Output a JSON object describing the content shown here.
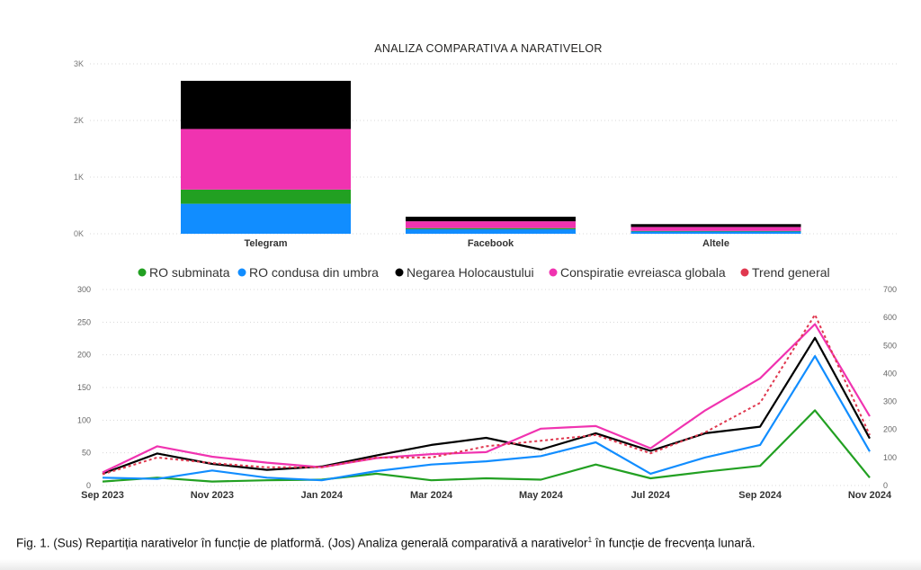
{
  "chart_data": [
    {
      "type": "bar",
      "stacked": true,
      "title": "ANALIZA COMPARATIVA A NARATIVELOR",
      "categories": [
        "Telegram",
        "Facebook",
        "Altele"
      ],
      "series": [
        {
          "name": "RO condusa din umbra",
          "color": "#118DFF",
          "values": [
            530,
            80,
            40
          ]
        },
        {
          "name": "RO subminata",
          "color": "#22A022",
          "values": [
            250,
            20,
            10
          ]
        },
        {
          "name": "Conspiratie evreiasca globala",
          "color": "#F033B0",
          "values": [
            1070,
            120,
            70
          ]
        },
        {
          "name": "Negarea Holocaustului",
          "color": "#000000",
          "values": [
            850,
            80,
            50
          ]
        }
      ],
      "ylim": [
        0,
        3000
      ],
      "yticks": [
        0,
        1000,
        2000,
        3000
      ],
      "ytick_labels": [
        "0K",
        "1K",
        "2K",
        "3K"
      ],
      "grid": true
    },
    {
      "type": "line",
      "x": [
        "Sep 2023",
        "Oct 2023",
        "Nov 2023",
        "Dec 2023",
        "Jan 2024",
        "Feb 2024",
        "Mar 2024",
        "Apr 2024",
        "May 2024",
        "Jun 2024",
        "Jul 2024",
        "Aug 2024",
        "Sep 2024",
        "Oct 2024",
        "Nov 2024"
      ],
      "xtick_labels": [
        "Sep 2023",
        "Nov 2023",
        "Jan 2024",
        "Mar 2024",
        "May 2024",
        "Jul 2024",
        "Sep 2024",
        "Nov 2024"
      ],
      "xtick_index": [
        0,
        2,
        4,
        6,
        8,
        10,
        12,
        14
      ],
      "legend_position": "top",
      "series": [
        {
          "name": "RO subminata",
          "color": "#22A022",
          "axis": "left",
          "dashed": false,
          "values": [
            6,
            12,
            6,
            8,
            9,
            18,
            8,
            11,
            9,
            32,
            11,
            21,
            30,
            115,
            12
          ]
        },
        {
          "name": "RO condusa din umbra",
          "color": "#118DFF",
          "axis": "left",
          "dashed": false,
          "values": [
            12,
            10,
            23,
            12,
            8,
            22,
            32,
            37,
            45,
            66,
            18,
            43,
            62,
            198,
            52
          ]
        },
        {
          "name": "Negarea Holocaustului",
          "color": "#000000",
          "axis": "left",
          "dashed": false,
          "values": [
            18,
            49,
            33,
            24,
            29,
            46,
            62,
            73,
            55,
            80,
            53,
            80,
            90,
            226,
            72
          ]
        },
        {
          "name": "Conspiratie evreiasca globala",
          "color": "#F033B0",
          "axis": "left",
          "dashed": false,
          "values": [
            20,
            60,
            44,
            35,
            28,
            42,
            48,
            51,
            87,
            91,
            57,
            115,
            164,
            247,
            106
          ]
        },
        {
          "name": "Trend general",
          "color": "#E0384F",
          "axis": "right",
          "dashed": true,
          "values": [
            40,
            100,
            80,
            65,
            65,
            100,
            100,
            140,
            160,
            180,
            115,
            190,
            295,
            610,
            180
          ]
        }
      ],
      "ylim_left": [
        0,
        300
      ],
      "yticks_left": [
        0,
        50,
        100,
        150,
        200,
        250,
        300
      ],
      "ylim_right": [
        0,
        700
      ],
      "yticks_right": [
        0,
        100,
        200,
        300,
        400,
        500,
        600,
        700
      ],
      "grid": true
    }
  ],
  "caption": {
    "text": "Fig. 1. (Sus) Repartiția narativelor în funcție de platformă. (Jos) Analiza generală comparativă a narativelor",
    "footnote_mark": "1",
    "text_after": " în funcție de frecvența lunară."
  }
}
